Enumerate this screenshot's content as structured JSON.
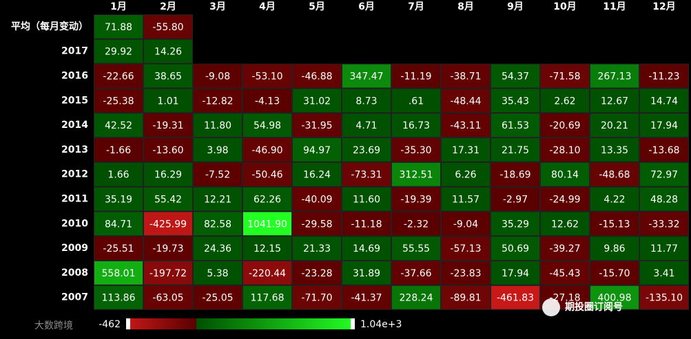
{
  "chart_data": {
    "type": "heatmap",
    "categories": [
      "1月",
      "2月",
      "3月",
      "4月",
      "5月",
      "6月",
      "7月",
      "8月",
      "9月",
      "10月",
      "11月",
      "12月"
    ],
    "rows": [
      "平均（每月变动）",
      "2017",
      "2016",
      "2015",
      "2014",
      "2013",
      "2012",
      "2011",
      "2010",
      "2009",
      "2008",
      "2007"
    ],
    "values": [
      [
        71.88,
        -55.8,
        null,
        null,
        null,
        null,
        null,
        null,
        null,
        null,
        null,
        null
      ],
      [
        29.92,
        14.26,
        null,
        null,
        null,
        null,
        null,
        null,
        null,
        null,
        null,
        null
      ],
      [
        -22.66,
        38.65,
        -9.08,
        -53.1,
        -46.88,
        347.47,
        -11.19,
        -38.71,
        54.37,
        -71.58,
        267.13,
        -11.23
      ],
      [
        -25.38,
        1.01,
        -12.82,
        -4.13,
        31.02,
        8.73,
        0.61,
        -48.44,
        35.43,
        2.62,
        12.67,
        14.74
      ],
      [
        42.52,
        -19.31,
        11.8,
        54.98,
        -31.95,
        4.71,
        16.73,
        -43.11,
        61.53,
        -20.69,
        20.21,
        17.94
      ],
      [
        -1.66,
        -13.6,
        3.98,
        -46.9,
        94.97,
        23.69,
        -35.3,
        17.31,
        21.75,
        -28.1,
        13.35,
        -13.68
      ],
      [
        1.66,
        16.29,
        -7.52,
        -50.46,
        16.24,
        -73.31,
        312.51,
        6.26,
        -18.69,
        80.14,
        -48.68,
        72.97
      ],
      [
        35.19,
        55.42,
        12.21,
        62.26,
        -40.09,
        11.6,
        -19.39,
        11.57,
        -2.97,
        -24.99,
        4.22,
        48.28
      ],
      [
        84.71,
        -425.99,
        82.58,
        1041.9,
        -29.58,
        -11.18,
        -2.32,
        -9.04,
        35.29,
        12.62,
        -15.13,
        -33.32
      ],
      [
        -25.51,
        -19.73,
        24.36,
        12.15,
        21.33,
        14.69,
        55.55,
        -57.13,
        50.69,
        -39.27,
        9.86,
        11.77
      ],
      [
        558.01,
        -197.72,
        5.38,
        -220.44,
        -23.28,
        31.89,
        -37.66,
        -23.83,
        17.94,
        -45.43,
        -15.7,
        3.41
      ],
      [
        113.86,
        -63.05,
        -25.05,
        117.68,
        -71.7,
        -41.37,
        228.24,
        -89.81,
        -461.83,
        -27.18,
        400.98,
        -135.1
      ]
    ],
    "value_labels": [
      [
        "71.88",
        "-55.80",
        null,
        null,
        null,
        null,
        null,
        null,
        null,
        null,
        null,
        null
      ],
      [
        "29.92",
        "14.26",
        null,
        null,
        null,
        null,
        null,
        null,
        null,
        null,
        null,
        null
      ],
      [
        "-22.66",
        "38.65",
        "-9.08",
        "-53.10",
        "-46.88",
        "347.47",
        "-11.19",
        "-38.71",
        "54.37",
        "-71.58",
        "267.13",
        "-11.23"
      ],
      [
        "-25.38",
        "1.01",
        "-12.82",
        "-4.13",
        "31.02",
        "8.73",
        ".61",
        "-48.44",
        "35.43",
        "2.62",
        "12.67",
        "14.74"
      ],
      [
        "42.52",
        "-19.31",
        "11.80",
        "54.98",
        "-31.95",
        "4.71",
        "16.73",
        "-43.11",
        "61.53",
        "-20.69",
        "20.21",
        "17.94"
      ],
      [
        "-1.66",
        "-13.60",
        "3.98",
        "-46.90",
        "94.97",
        "23.69",
        "-35.30",
        "17.31",
        "21.75",
        "-28.10",
        "13.35",
        "-13.68"
      ],
      [
        "1.66",
        "16.29",
        "-7.52",
        "-50.46",
        "16.24",
        "-73.31",
        "312.51",
        "6.26",
        "-18.69",
        "80.14",
        "-48.68",
        "72.97"
      ],
      [
        "35.19",
        "55.42",
        "12.21",
        "62.26",
        "-40.09",
        "11.60",
        "-19.39",
        "11.57",
        "-2.97",
        "-24.99",
        "4.22",
        "48.28"
      ],
      [
        "84.71",
        "-425.99",
        "82.58",
        "1041.90",
        "-29.58",
        "-11.18",
        "-2.32",
        "-9.04",
        "35.29",
        "12.62",
        "-15.13",
        "-33.32"
      ],
      [
        "-25.51",
        "-19.73",
        "24.36",
        "12.15",
        "21.33",
        "14.69",
        "55.55",
        "-57.13",
        "50.69",
        "-39.27",
        "9.86",
        "11.77"
      ],
      [
        "558.01",
        "-197.72",
        "5.38",
        "-220.44",
        "-23.28",
        "31.89",
        "-37.66",
        "-23.83",
        "17.94",
        "-45.43",
        "-15.70",
        "3.41"
      ],
      [
        "113.86",
        "-63.05",
        "-25.05",
        "117.68",
        "-71.70",
        "-41.37",
        "228.24",
        "-89.81",
        "-461.83",
        "-27.18",
        "400.98",
        "-135.10"
      ]
    ],
    "colorbar": {
      "lim": [
        -462,
        1040
      ],
      "ticks": [
        -462,
        {
          "value": 1040,
          "label": "1.04e+3"
        }
      ],
      "colors": {
        "min": "#c81818",
        "zero_neg": "#5a0000",
        "zero_pos": "#005000",
        "max": "#22ff22"
      }
    }
  },
  "watermarks": [
    "大数跨境",
    "期投圈订阅号"
  ]
}
